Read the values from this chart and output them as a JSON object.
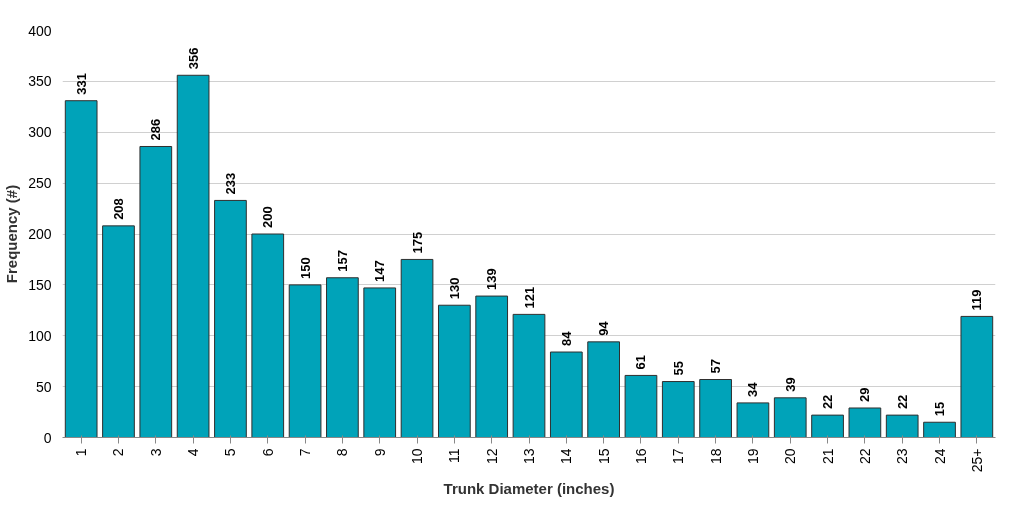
{
  "chart_data": {
    "type": "bar",
    "xlabel": "Trunk Diameter (inches)",
    "ylabel": "Frequency (#)",
    "categories": [
      "1",
      "2",
      "3",
      "4",
      "5",
      "6",
      "7",
      "8",
      "9",
      "10",
      "11",
      "12",
      "13",
      "14",
      "15",
      "16",
      "17",
      "18",
      "19",
      "20",
      "21",
      "22",
      "23",
      "24",
      "25+"
    ],
    "values": [
      331,
      208,
      286,
      356,
      233,
      200,
      150,
      157,
      147,
      175,
      130,
      139,
      121,
      84,
      94,
      61,
      55,
      57,
      34,
      39,
      22,
      29,
      22,
      15,
      119
    ],
    "color": "#00a3b9",
    "ylim": [
      0,
      400
    ],
    "yticks": [
      0,
      50,
      100,
      150,
      200,
      250,
      300,
      350,
      400
    ],
    "grid": "y",
    "data_labels": true
  }
}
